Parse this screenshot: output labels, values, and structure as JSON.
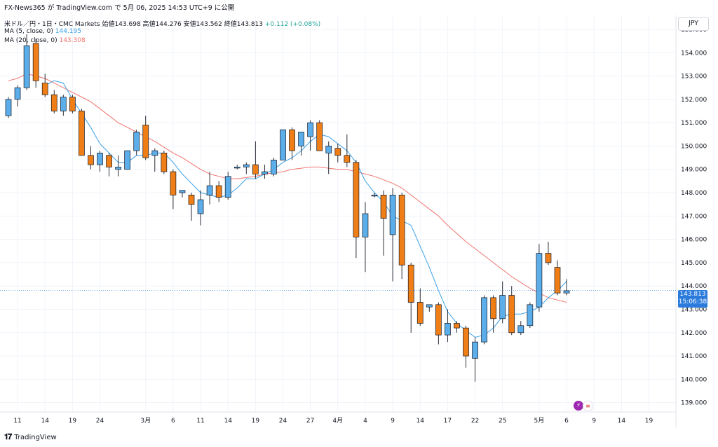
{
  "header": {
    "attribution": "FX-News365 が TradingView.com で 5月 06, 2025 14:53 UTC+9 に公開"
  },
  "symbol_line": {
    "symbol": "米ドル／円・1日・CMC Markets",
    "open_label": "始値",
    "open": "143.698",
    "high_label": "高値",
    "high": "144.276",
    "low_label": "安値",
    "low": "143.562",
    "close_label": "終値",
    "close": "143.813",
    "change": "+0.112 (+0.08%)"
  },
  "indicators": [
    {
      "label": "MA (5, close, 0)",
      "value": "144.195",
      "color": "#3aa0e8"
    },
    {
      "label": "MA (20, close, 0)",
      "value": "143.308",
      "color": "#f0756f"
    }
  ],
  "currency_button": "JPY",
  "last_price": {
    "price": "143.813",
    "countdown": "15:06:38"
  },
  "branding": {
    "name": "TradingView"
  },
  "colors": {
    "up": "#5baee9",
    "down": "#f07e16",
    "grid": "#f0f3fa",
    "ma5": "#3aa0e8",
    "ma20": "#f0756f",
    "tag": "#2a7bdc"
  },
  "chart_data": {
    "type": "candlestick",
    "ylim": [
      138.6,
      155.6
    ],
    "y_ticks": [
      "139.000",
      "140.000",
      "141.000",
      "142.000",
      "143.000",
      "144.000",
      "145.000",
      "146.000",
      "147.000",
      "148.000",
      "149.000",
      "150.000",
      "151.000",
      "152.000",
      "153.000",
      "154.000",
      "155.000"
    ],
    "x_ticks": [
      {
        "i": 1,
        "label": "11"
      },
      {
        "i": 4,
        "label": "14"
      },
      {
        "i": 7,
        "label": "19"
      },
      {
        "i": 10,
        "label": "24"
      },
      {
        "i": 15,
        "label": "3月"
      },
      {
        "i": 18,
        "label": "6"
      },
      {
        "i": 21,
        "label": "11"
      },
      {
        "i": 24,
        "label": "14"
      },
      {
        "i": 27,
        "label": "19"
      },
      {
        "i": 30,
        "label": "24"
      },
      {
        "i": 33,
        "label": "27"
      },
      {
        "i": 36,
        "label": "4月"
      },
      {
        "i": 39,
        "label": "4"
      },
      {
        "i": 42,
        "label": "9"
      },
      {
        "i": 45,
        "label": "14"
      },
      {
        "i": 48,
        "label": "17"
      },
      {
        "i": 51,
        "label": "22"
      },
      {
        "i": 54,
        "label": "25"
      },
      {
        "i": 58,
        "label": "5月"
      },
      {
        "i": 61,
        "label": "6"
      },
      {
        "i": 64,
        "label": "9"
      },
      {
        "i": 67,
        "label": "14"
      },
      {
        "i": 70,
        "label": "19"
      }
    ],
    "candles": [
      [
        151.3,
        152.1,
        151.2,
        152.0
      ],
      [
        152.0,
        152.6,
        151.7,
        152.5
      ],
      [
        152.5,
        154.8,
        152.4,
        154.3
      ],
      [
        154.4,
        154.6,
        152.5,
        152.8
      ],
      [
        152.7,
        153.1,
        152.1,
        152.2
      ],
      [
        152.2,
        152.4,
        151.4,
        151.5
      ],
      [
        151.5,
        152.2,
        151.3,
        152.1
      ],
      [
        152.1,
        152.2,
        151.4,
        151.5
      ],
      [
        151.5,
        151.6,
        149.6,
        149.6
      ],
      [
        149.6,
        150.0,
        149.0,
        149.2
      ],
      [
        149.2,
        149.8,
        148.9,
        149.7
      ],
      [
        149.6,
        149.7,
        148.7,
        149.1
      ],
      [
        149.0,
        149.6,
        148.7,
        149.1
      ],
      [
        149.0,
        149.8,
        149.0,
        149.8
      ],
      [
        149.8,
        150.7,
        149.6,
        150.6
      ],
      [
        150.9,
        151.3,
        149.4,
        149.5
      ],
      [
        149.6,
        149.9,
        148.9,
        149.8
      ],
      [
        149.7,
        149.8,
        148.8,
        148.9
      ],
      [
        148.9,
        149.0,
        147.3,
        147.9
      ],
      [
        148.0,
        148.1,
        147.8,
        148.1
      ],
      [
        147.9,
        148.0,
        146.8,
        147.5
      ],
      [
        147.1,
        148.1,
        146.6,
        147.7
      ],
      [
        147.9,
        148.9,
        147.5,
        148.3
      ],
      [
        148.3,
        148.5,
        147.6,
        147.8
      ],
      [
        147.8,
        148.9,
        147.7,
        148.7
      ],
      [
        149.1,
        149.2,
        149.0,
        149.1
      ],
      [
        149.1,
        149.3,
        148.8,
        149.2
      ],
      [
        149.2,
        150.2,
        148.6,
        148.8
      ],
      [
        148.8,
        149.2,
        148.6,
        148.9
      ],
      [
        148.8,
        149.5,
        148.7,
        149.4
      ],
      [
        149.4,
        150.7,
        149.4,
        150.7
      ],
      [
        150.7,
        150.8,
        149.4,
        149.8
      ],
      [
        150.0,
        150.6,
        149.6,
        150.6
      ],
      [
        150.4,
        151.1,
        149.8,
        151.0
      ],
      [
        151.0,
        151.1,
        149.8,
        149.8
      ],
      [
        149.7,
        150.2,
        148.8,
        150.0
      ],
      [
        149.9,
        150.1,
        149.3,
        149.6
      ],
      [
        149.6,
        150.5,
        149.1,
        149.3
      ],
      [
        149.3,
        149.4,
        145.2,
        146.1
      ],
      [
        146.1,
        147.6,
        144.6,
        147.1
      ],
      [
        147.9,
        148.0,
        147.8,
        147.9
      ],
      [
        147.9,
        148.1,
        145.3,
        146.9
      ],
      [
        146.2,
        148.2,
        144.2,
        147.9
      ],
      [
        147.9,
        148.0,
        144.3,
        144.9
      ],
      [
        144.9,
        145.0,
        142.0,
        143.3
      ],
      [
        143.3,
        143.9,
        142.3,
        142.4
      ],
      [
        143.1,
        143.2,
        142.9,
        143.2
      ],
      [
        143.2,
        143.3,
        141.5,
        141.9
      ],
      [
        141.9,
        143.0,
        141.6,
        142.4
      ],
      [
        142.4,
        142.5,
        142.0,
        142.2
      ],
      [
        142.2,
        142.3,
        140.5,
        141.0
      ],
      [
        140.9,
        141.8,
        139.9,
        141.6
      ],
      [
        141.6,
        143.6,
        141.5,
        143.5
      ],
      [
        143.5,
        143.6,
        142.0,
        142.6
      ],
      [
        142.6,
        144.2,
        142.4,
        143.6
      ],
      [
        143.6,
        144.0,
        141.9,
        142.0
      ],
      [
        142.0,
        142.5,
        141.9,
        142.3
      ],
      [
        142.3,
        143.3,
        142.2,
        143.2
      ],
      [
        143.1,
        145.8,
        142.9,
        145.4
      ],
      [
        145.4,
        145.9,
        144.9,
        145.0
      ],
      [
        144.8,
        145.1,
        143.6,
        143.7
      ],
      [
        143.7,
        144.3,
        143.6,
        143.8
      ]
    ],
    "ma5": [
      null,
      null,
      null,
      null,
      152.6,
      152.8,
      152.7,
      152.0,
      151.4,
      150.8,
      150.1,
      149.7,
      149.3,
      149.3,
      149.6,
      149.6,
      149.7,
      149.7,
      149.3,
      148.8,
      148.4,
      148.0,
      147.9,
      147.8,
      147.9,
      148.2,
      148.6,
      148.6,
      148.8,
      149.0,
      149.3,
      149.5,
      149.8,
      150.2,
      150.5,
      150.4,
      150.1,
      149.8,
      149.3,
      148.5,
      148.0,
      147.6,
      147.0,
      146.8,
      146.6,
      145.7,
      144.8,
      143.8,
      142.9,
      142.4,
      142.1,
      141.8,
      141.9,
      142.2,
      142.7,
      142.8,
      142.8,
      142.9,
      143.1,
      143.5,
      143.8,
      144.2
    ],
    "ma20": [
      152.8,
      152.9,
      153.1,
      153.0,
      152.9,
      152.7,
      152.5,
      152.3,
      152.1,
      151.9,
      151.6,
      151.3,
      151.0,
      150.8,
      150.6,
      150.4,
      150.2,
      149.95,
      149.7,
      149.5,
      149.25,
      149.0,
      148.8,
      148.7,
      148.6,
      148.6,
      148.65,
      148.7,
      148.8,
      148.85,
      148.9,
      149.0,
      149.05,
      149.1,
      149.1,
      149.05,
      149.0,
      149.0,
      148.9,
      148.8,
      148.7,
      148.55,
      148.4,
      148.2,
      147.9,
      147.6,
      147.3,
      147.0,
      146.6,
      146.25,
      145.9,
      145.6,
      145.3,
      145.0,
      144.7,
      144.4,
      144.15,
      143.9,
      143.7,
      143.5,
      143.4,
      143.3
    ]
  }
}
